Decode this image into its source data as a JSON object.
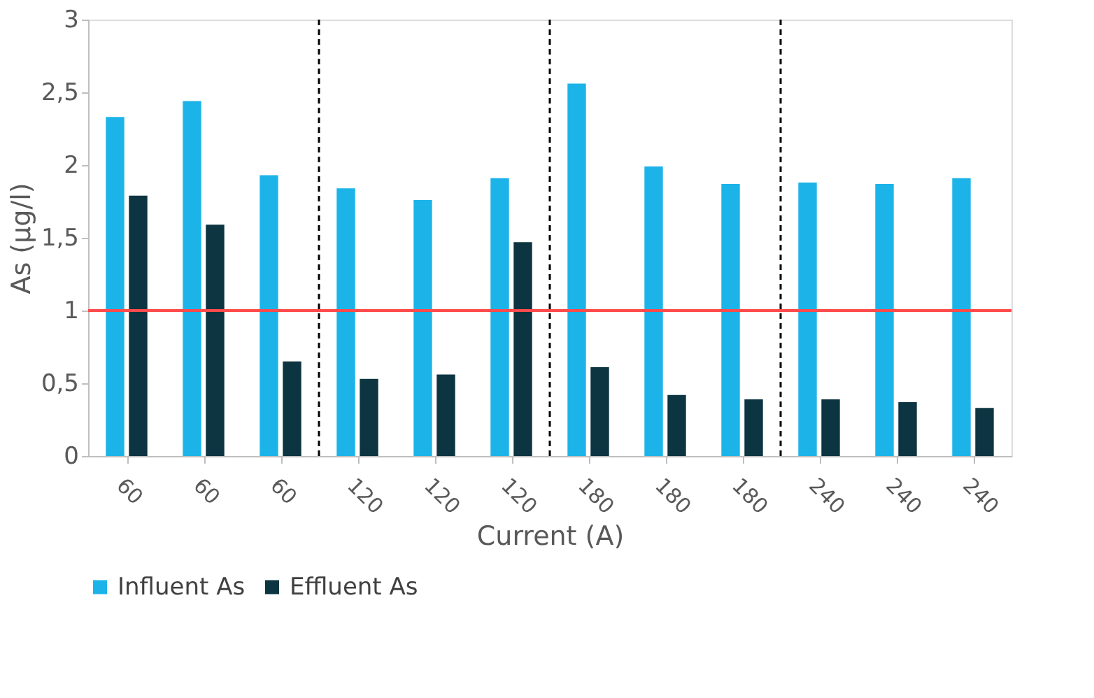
{
  "chart_data": {
    "type": "bar",
    "xlabel": "Current (A)",
    "ylabel": "As (µg/l)",
    "categories": [
      "60",
      "60",
      "60",
      "120",
      "120",
      "120",
      "180",
      "180",
      "180",
      "240",
      "240",
      "240"
    ],
    "series": [
      {
        "name": "Influent As",
        "color": "#1cb4e8",
        "values": [
          2.33,
          2.44,
          1.93,
          1.84,
          1.76,
          1.91,
          2.56,
          1.99,
          1.87,
          1.88,
          1.87,
          1.91
        ]
      },
      {
        "name": "Effluent As",
        "color": "#0c3441",
        "values": [
          1.79,
          1.59,
          0.65,
          0.53,
          0.56,
          1.47,
          0.61,
          0.42,
          0.39,
          0.39,
          0.37,
          0.33
        ]
      }
    ],
    "ylim": [
      0,
      3
    ],
    "yticks": [
      0,
      {
        "value": 0.5,
        "label": "0,5"
      },
      1,
      {
        "value": 1.5,
        "label": "1,5"
      },
      2,
      {
        "value": 2.5,
        "label": "2,5"
      },
      3
    ],
    "ref_lines": [
      {
        "axis": "y",
        "value": 1,
        "color": "#ff4b4b",
        "line_style": "solid"
      }
    ],
    "grid": false,
    "legend": "bottom"
  }
}
